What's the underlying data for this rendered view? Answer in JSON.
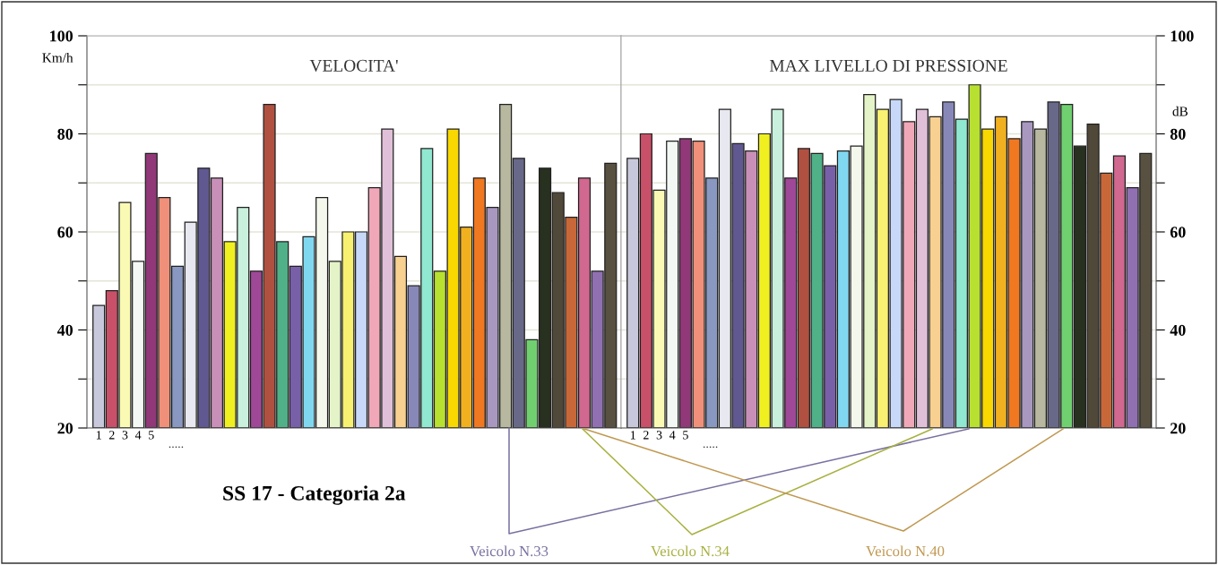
{
  "chart_data": [
    {
      "type": "bar",
      "title": "VELOCITA'",
      "ylabel": "Km/h",
      "categories": [
        "1",
        "2",
        "3",
        "4",
        "5",
        null,
        null,
        null,
        null,
        null,
        null,
        null,
        null,
        null,
        null,
        null,
        null,
        null,
        null,
        null,
        null,
        null,
        null,
        null,
        null,
        null,
        null,
        null,
        null,
        null,
        null,
        null,
        null,
        null,
        null,
        null,
        null,
        null,
        null,
        null
      ],
      "values": [
        45,
        48,
        66,
        54,
        76,
        67,
        53,
        62,
        73,
        71,
        58,
        65,
        52,
        86,
        58,
        53,
        59,
        67,
        54,
        60,
        60,
        69,
        81,
        55,
        49,
        77,
        52,
        81,
        61,
        71,
        65,
        86,
        75,
        38,
        73,
        68,
        63,
        71,
        52,
        74
      ],
      "colors": [
        "#c8c8dc",
        "#c85068",
        "#fafab4",
        "#f4f8f4",
        "#903878",
        "#f0907a",
        "#8898c0",
        "#e8e8f0",
        "#605890",
        "#c890b8",
        "#f0f020",
        "#c8f0dc",
        "#a04898",
        "#b05040",
        "#50b088",
        "#7860a8",
        "#80d8f0",
        "#f4f8ec",
        "#e4f4c8",
        "#f8f070",
        "#c8d8f8",
        "#f0a8b8",
        "#e0c0d8",
        "#f8d090",
        "#8888b8",
        "#90e8d0",
        "#b8e030",
        "#f8d800",
        "#f0b020",
        "#f07820",
        "#a898c0",
        "#b8b8a0",
        "#686888",
        "#70d070",
        "#283020",
        "#504838",
        "#c86838",
        "#d06890",
        "#9070b0",
        "#585040"
      ],
      "ylim": [
        20,
        100
      ],
      "yticks": [
        20,
        {
          "value": 30,
          "label": null
        },
        40,
        {
          "value": 50,
          "label": null
        },
        60,
        {
          "value": 70,
          "label": null
        },
        80,
        {
          "value": 90,
          "label": null
        },
        100
      ],
      "grid": "y",
      "annotations": [
        ".....",
        "SS 17 - Categoria 2a",
        "Veicolo N.33",
        "Veicolo N.34",
        "Veicolo N.40"
      ]
    },
    {
      "type": "bar",
      "title": "MAX LIVELLO DI PRESSIONE",
      "ylabel": "dB",
      "categories": [
        "1",
        "2",
        "3",
        "4",
        "5",
        null,
        null,
        null,
        null,
        null,
        null,
        null,
        null,
        null,
        null,
        null,
        null,
        null,
        null,
        null,
        null,
        null,
        null,
        null,
        null,
        null,
        null,
        null,
        null,
        null,
        null,
        null,
        null,
        null,
        null,
        null,
        null,
        null,
        null,
        null
      ],
      "values": [
        75,
        80,
        68.5,
        78.5,
        79,
        78.5,
        71,
        85,
        78,
        76.5,
        80,
        85,
        71,
        77,
        76,
        73.5,
        76.5,
        77.5,
        88,
        85,
        87,
        82.5,
        85,
        83.5,
        86.5,
        83,
        90,
        81,
        83.5,
        79,
        82.5,
        81,
        86.5,
        86,
        77.5,
        82,
        72,
        75.5,
        69,
        76
      ],
      "colors": [
        "#c8c8dc",
        "#c85068",
        "#fafab4",
        "#f4f8f4",
        "#903878",
        "#f0907a",
        "#8898c0",
        "#e8e8f0",
        "#605890",
        "#c890b8",
        "#f0f020",
        "#c8f0dc",
        "#a04898",
        "#b05040",
        "#50b088",
        "#7860a8",
        "#80d8f0",
        "#f4f8ec",
        "#e4f4c8",
        "#f8f070",
        "#c8d8f8",
        "#f0a8b8",
        "#e0c0d8",
        "#f8d090",
        "#8888b8",
        "#90e8d0",
        "#b8e030",
        "#f8d800",
        "#f0b020",
        "#f07820",
        "#a898c0",
        "#b8b8a0",
        "#686888",
        "#70d070",
        "#283020",
        "#504838",
        "#c86838",
        "#d06890",
        "#9070b0",
        "#585040"
      ],
      "ylim": [
        20,
        100
      ],
      "yticks": [
        20,
        {
          "value": 30,
          "label": null
        },
        40,
        {
          "value": 50,
          "label": null
        },
        60,
        {
          "value": 70,
          "label": null
        },
        80,
        {
          "value": 90,
          "label": null
        },
        100
      ],
      "grid": "y",
      "annotations": [
        "....."
      ]
    }
  ]
}
